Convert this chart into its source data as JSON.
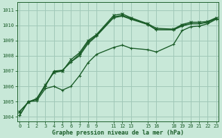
{
  "title": "Graphe pression niveau de la mer (hPa)",
  "bg_color": "#c8e8d8",
  "grid_color": "#a0c8b8",
  "line_color": "#1a5c28",
  "xlim": [
    -0.3,
    23.3
  ],
  "ylim": [
    1003.7,
    1011.5
  ],
  "yticks": [
    1004,
    1005,
    1006,
    1007,
    1008,
    1009,
    1010,
    1011
  ],
  "xtick_positions": [
    0,
    1,
    2,
    3,
    4,
    5,
    6,
    7,
    8,
    9,
    11,
    12,
    13,
    15,
    16,
    18,
    19,
    20,
    21,
    22,
    23
  ],
  "xtick_labels": [
    "0",
    "1",
    "2",
    "3",
    "4",
    "5",
    "6",
    "7",
    "8",
    "9",
    "11",
    "12",
    "13",
    "15",
    "16",
    "18",
    "19",
    "20",
    "21",
    "22",
    "23"
  ],
  "series": [
    {
      "x": [
        0,
        1,
        2,
        3,
        4,
        5,
        6,
        7,
        8,
        9,
        11,
        12,
        13,
        15,
        16,
        18,
        19,
        20,
        21,
        22,
        23
      ],
      "y": [
        1004.35,
        1004.95,
        1005.2,
        1006.1,
        1006.9,
        1007.0,
        1007.75,
        1008.2,
        1009.0,
        1009.4,
        1010.65,
        1010.75,
        1010.5,
        1010.1,
        1009.8,
        1009.75,
        1010.05,
        1010.2,
        1010.2,
        1010.25,
        1010.5
      ],
      "marker": "x",
      "lw": 1.0,
      "ms": 3.0
    },
    {
      "x": [
        0,
        1,
        2,
        3,
        4,
        5,
        6,
        7,
        8,
        9,
        11,
        12,
        13,
        15,
        16,
        18,
        19,
        20,
        21,
        22,
        23
      ],
      "y": [
        1004.35,
        1004.95,
        1005.2,
        1006.05,
        1006.95,
        1007.05,
        1007.6,
        1008.1,
        1008.9,
        1009.35,
        1010.55,
        1010.65,
        1010.45,
        1010.05,
        1009.7,
        1009.7,
        1009.95,
        1010.1,
        1010.1,
        1010.2,
        1010.45
      ],
      "marker": "+",
      "lw": 1.0,
      "ms": 3.5
    },
    {
      "x": [
        0,
        1,
        2,
        3,
        4,
        5,
        6,
        7,
        8,
        9,
        11,
        12,
        13,
        15,
        16,
        18,
        19,
        20,
        21,
        22,
        23
      ],
      "y": [
        1004.1,
        1005.0,
        1005.15,
        1006.0,
        1007.0,
        1007.05,
        1007.6,
        1008.0,
        1008.8,
        1009.3,
        1010.5,
        1010.6,
        1010.4,
        1010.05,
        1009.7,
        1009.7,
        1010.0,
        1010.1,
        1010.1,
        1010.2,
        1010.45
      ],
      "marker": "+",
      "lw": 1.0,
      "ms": 3.5
    },
    {
      "x": [
        0,
        1,
        2,
        3,
        4,
        5,
        6,
        7,
        8,
        9,
        11,
        12,
        13,
        15,
        16,
        18,
        19,
        20,
        21,
        22,
        23
      ],
      "y": [
        1004.1,
        1005.0,
        1005.05,
        1005.85,
        1006.0,
        1005.75,
        1006.0,
        1006.7,
        1007.55,
        1008.1,
        1008.55,
        1008.7,
        1008.5,
        1008.4,
        1008.25,
        1008.75,
        1009.65,
        1009.9,
        1009.95,
        1010.1,
        1010.4
      ],
      "marker": "+",
      "lw": 1.0,
      "ms": 3.5
    }
  ]
}
